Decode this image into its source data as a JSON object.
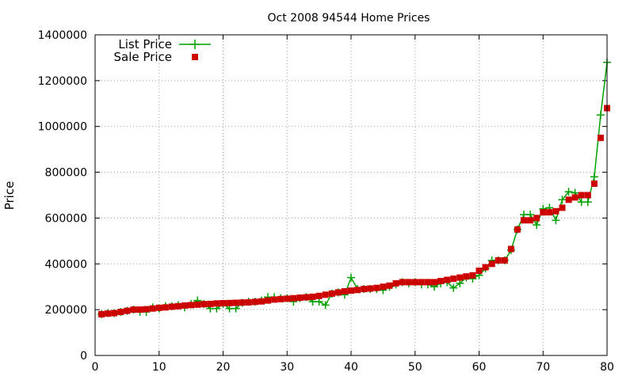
{
  "chart_data": {
    "type": "line",
    "title": "Oct 2008 94544 Home Prices",
    "xlabel": "",
    "ylabel": "Price",
    "xlim": [
      0,
      80
    ],
    "ylim": [
      0,
      1400000
    ],
    "xticks": [
      "0",
      "10",
      "20",
      "30",
      "40",
      "50",
      "60",
      "70",
      "80"
    ],
    "yticks": [
      "0",
      "200000",
      "400000",
      "600000",
      "800000",
      "1000000",
      "1200000",
      "1400000"
    ],
    "grid": true,
    "legend_position": "top-left",
    "series": [
      {
        "name": "List Price",
        "style": "line-plus",
        "color": "#00a000",
        "x": [
          1,
          2,
          3,
          4,
          5,
          6,
          7,
          8,
          9,
          10,
          11,
          12,
          13,
          14,
          15,
          16,
          17,
          18,
          19,
          20,
          21,
          22,
          23,
          24,
          25,
          26,
          27,
          28,
          29,
          30,
          31,
          32,
          33,
          34,
          35,
          36,
          37,
          38,
          39,
          40,
          41,
          42,
          43,
          44,
          45,
          46,
          47,
          48,
          49,
          50,
          51,
          52,
          53,
          54,
          55,
          56,
          57,
          58,
          59,
          60,
          61,
          62,
          63,
          64,
          65,
          66,
          67,
          68,
          69,
          70,
          71,
          72,
          73,
          74,
          75,
          76,
          77,
          78,
          79,
          80
        ],
        "values": [
          180000,
          185000,
          185000,
          190000,
          195000,
          200000,
          190000,
          190000,
          210000,
          205000,
          215000,
          215000,
          220000,
          210000,
          225000,
          240000,
          225000,
          205000,
          205000,
          225000,
          205000,
          205000,
          230000,
          235000,
          235000,
          240000,
          255000,
          255000,
          250000,
          250000,
          235000,
          250000,
          255000,
          235000,
          235000,
          220000,
          270000,
          275000,
          265000,
          340000,
          290000,
          290000,
          290000,
          290000,
          285000,
          300000,
          310000,
          320000,
          315000,
          320000,
          310000,
          310000,
          300000,
          315000,
          320000,
          295000,
          315000,
          340000,
          335000,
          350000,
          380000,
          415000,
          415000,
          415000,
          460000,
          550000,
          615000,
          615000,
          570000,
          640000,
          645000,
          590000,
          680000,
          715000,
          710000,
          670000,
          670000,
          780000,
          1050000,
          1280000
        ]
      },
      {
        "name": "Sale Price",
        "style": "points-square",
        "color": "#cc0000",
        "x": [
          1,
          2,
          3,
          4,
          5,
          6,
          7,
          8,
          9,
          10,
          11,
          12,
          13,
          14,
          15,
          16,
          17,
          18,
          19,
          20,
          21,
          22,
          23,
          24,
          25,
          26,
          27,
          28,
          29,
          30,
          31,
          32,
          33,
          34,
          35,
          36,
          37,
          38,
          39,
          40,
          41,
          42,
          43,
          44,
          45,
          46,
          47,
          48,
          49,
          50,
          51,
          52,
          53,
          54,
          55,
          56,
          57,
          58,
          59,
          60,
          61,
          62,
          63,
          64,
          65,
          66,
          67,
          68,
          69,
          70,
          71,
          72,
          73,
          74,
          75,
          76,
          77,
          78,
          79,
          80
        ],
        "values": [
          180000,
          183000,
          185000,
          190000,
          195000,
          200000,
          200000,
          202000,
          205000,
          208000,
          210000,
          213000,
          215000,
          218000,
          220000,
          222000,
          224000,
          225000,
          227000,
          228000,
          229000,
          230000,
          231000,
          232000,
          234000,
          236000,
          240000,
          244000,
          246000,
          248000,
          250000,
          252000,
          254000,
          256000,
          260000,
          265000,
          270000,
          275000,
          280000,
          283000,
          286000,
          290000,
          292000,
          295000,
          300000,
          305000,
          315000,
          320000,
          320000,
          320000,
          320000,
          320000,
          320000,
          325000,
          330000,
          335000,
          340000,
          345000,
          350000,
          370000,
          385000,
          400000,
          415000,
          415000,
          465000,
          550000,
          590000,
          590000,
          600000,
          625000,
          625000,
          630000,
          645000,
          680000,
          690000,
          700000,
          700000,
          750000,
          950000,
          1080000
        ]
      }
    ]
  }
}
